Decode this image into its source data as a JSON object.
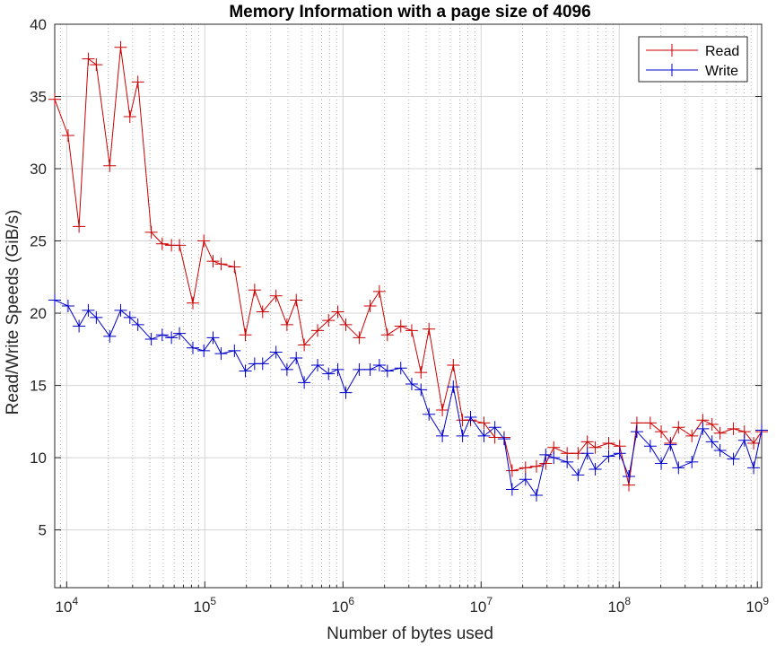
{
  "chart_data": {
    "type": "line",
    "title": "Memory Information with a page size of 4096",
    "xlabel": "Number of bytes used",
    "ylabel": "Read/Write Speeds (GiB/s)",
    "x_scale": "log",
    "xlim": [
      8192,
      1073741824
    ],
    "ylim": [
      1,
      40
    ],
    "y_ticks": [
      5,
      10,
      15,
      20,
      25,
      30,
      35,
      40
    ],
    "x_ticks": [
      {
        "value": 10000,
        "base": "10",
        "exp": "4"
      },
      {
        "value": 100000,
        "base": "10",
        "exp": "5"
      },
      {
        "value": 1000000,
        "base": "10",
        "exp": "6"
      },
      {
        "value": 10000000,
        "base": "10",
        "exp": "7"
      },
      {
        "value": 100000000,
        "base": "10",
        "exp": "8"
      },
      {
        "value": 1000000000,
        "base": "10",
        "exp": "9"
      }
    ],
    "grid": true,
    "legend_position": "top-right",
    "x": [
      8192,
      10240,
      12288,
      14336,
      16384,
      20480,
      24576,
      28672,
      32768,
      40960,
      49152,
      57344,
      65536,
      81920,
      98304,
      114688,
      131072,
      163840,
      196608,
      229376,
      262144,
      327680,
      393216,
      458752,
      524288,
      655360,
      786432,
      917504,
      1048576,
      1310720,
      1572864,
      1835008,
      2097152,
      2621440,
      3145728,
      3670016,
      4194304,
      5242880,
      6291456,
      7340032,
      8388608,
      10485760,
      12582912,
      14680064,
      16777216,
      20971520,
      25165824,
      29360128,
      33554432,
      41943040,
      50331648,
      58720256,
      67108864,
      83886080,
      100663296,
      117440512,
      134217728,
      167772160,
      201326592,
      234881024,
      268435456,
      335544320,
      402653184,
      469762048,
      536870912,
      671088640,
      805306368,
      939524096,
      1073741824
    ],
    "series": [
      {
        "name": "Read",
        "color": "#cc0000",
        "values": [
          34.8,
          32.3,
          26.0,
          37.6,
          37.2,
          30.2,
          38.4,
          33.6,
          36.0,
          25.6,
          24.8,
          24.7,
          24.7,
          20.7,
          25.0,
          23.6,
          23.4,
          23.2,
          18.5,
          21.6,
          20.1,
          21.2,
          19.2,
          20.9,
          17.8,
          18.8,
          19.5,
          20.1,
          19.2,
          18.3,
          20.5,
          21.5,
          18.5,
          19.1,
          18.8,
          15.9,
          18.9,
          13.3,
          16.4,
          12.6,
          12.6,
          12.4,
          11.4,
          11.4,
          9.1,
          9.3,
          9.4,
          9.6,
          10.7,
          10.3,
          10.3,
          11.1,
          10.7,
          11.0,
          10.8,
          8.1,
          12.4,
          12.4,
          11.8,
          11.0,
          12.1,
          11.5,
          12.6,
          12.3,
          11.7,
          12.0,
          11.8,
          11.0,
          11.8
        ]
      },
      {
        "name": "Write",
        "color": "#0000cc",
        "values": [
          20.9,
          20.5,
          19.1,
          20.2,
          19.7,
          18.4,
          20.2,
          19.7,
          19.2,
          18.2,
          18.5,
          18.3,
          18.6,
          17.6,
          17.4,
          18.3,
          17.2,
          17.4,
          16.0,
          16.5,
          16.5,
          17.3,
          16.1,
          16.9,
          15.2,
          16.4,
          15.8,
          16.1,
          14.5,
          16.1,
          16.1,
          16.4,
          16.0,
          16.2,
          15.1,
          14.7,
          13.0,
          11.5,
          14.9,
          11.5,
          12.8,
          11.5,
          12.1,
          11.3,
          7.8,
          8.5,
          7.4,
          10.2,
          10.0,
          9.7,
          8.8,
          10.3,
          9.2,
          10.1,
          10.3,
          8.7,
          11.8,
          10.8,
          9.6,
          10.9,
          9.3,
          9.7,
          12.0,
          11.1,
          10.5,
          9.9,
          11.2,
          9.3,
          11.9
        ]
      }
    ]
  }
}
